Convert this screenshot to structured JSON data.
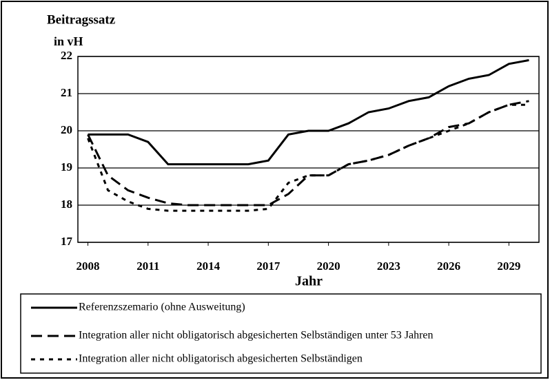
{
  "chart_data": {
    "type": "line",
    "title": "Beitragssatz",
    "y_label": "in vH",
    "x_label": "Jahr",
    "x": [
      2008,
      2009,
      2010,
      2011,
      2012,
      2013,
      2014,
      2015,
      2016,
      2017,
      2018,
      2019,
      2020,
      2021,
      2022,
      2023,
      2024,
      2025,
      2026,
      2027,
      2028,
      2029,
      2030
    ],
    "xlim": [
      2007.5,
      2030.5
    ],
    "xticks": [
      2008,
      2011,
      2014,
      2017,
      2020,
      2023,
      2026,
      2029
    ],
    "ylim": [
      17,
      22
    ],
    "yticks": [
      17,
      18,
      19,
      20,
      21,
      22
    ],
    "grid": true,
    "legend": "bottom",
    "series": [
      {
        "name": "Referenzszemario (ohne Ausweitung)",
        "color": "#000000",
        "dash": "solid",
        "values": [
          19.9,
          19.9,
          19.9,
          19.7,
          19.1,
          19.1,
          19.1,
          19.1,
          19.1,
          19.2,
          19.9,
          20.0,
          20.0,
          20.2,
          20.5,
          20.6,
          20.8,
          20.9,
          21.2,
          21.4,
          21.5,
          21.8,
          21.9
        ]
      },
      {
        "name": "Integration aller nicht obligatorisch abgesicherten Selbständigen unter 53 Jahren",
        "color": "#000000",
        "dash": "dashed",
        "values": [
          19.9,
          18.8,
          18.4,
          18.2,
          18.05,
          18.0,
          18.0,
          18.0,
          18.0,
          18.0,
          18.3,
          18.8,
          18.8,
          19.1,
          19.2,
          19.35,
          19.6,
          19.8,
          20.1,
          20.2,
          20.5,
          20.7,
          20.8
        ]
      },
      {
        "name": "Integration aller nicht obligatorisch abgesicherten Selbständigen",
        "color": "#000000",
        "dash": "dotted",
        "values": [
          19.8,
          18.4,
          18.1,
          17.9,
          17.85,
          17.85,
          17.85,
          17.85,
          17.85,
          17.9,
          18.6,
          18.8,
          18.8,
          19.1,
          19.2,
          19.35,
          19.6,
          19.8,
          20.0,
          20.2,
          20.5,
          20.7,
          20.7
        ]
      }
    ]
  }
}
